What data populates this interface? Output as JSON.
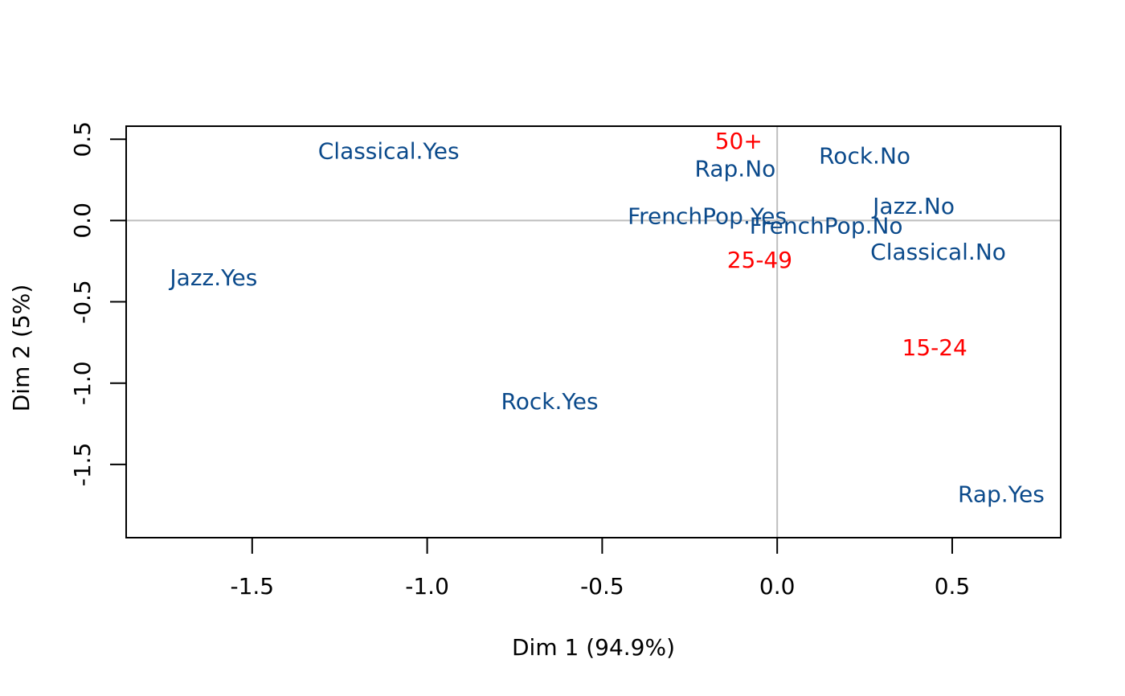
{
  "chart_data": {
    "type": "scatter",
    "title": "",
    "xlabel": "Dim 1 (94.9%)",
    "ylabel": "Dim 2 (5%)",
    "xlim": [
      -1.86,
      0.81
    ],
    "ylim": [
      -1.95,
      0.58
    ],
    "x_ticks": [
      -1.5,
      -1.0,
      -0.5,
      0.0,
      0.5
    ],
    "x_tick_labels": [
      "-1.5",
      "-1.0",
      "-0.5",
      "0.0",
      "0.5"
    ],
    "y_ticks": [
      -1.5,
      -1.0,
      -0.5,
      0.0,
      0.5
    ],
    "y_tick_labels": [
      "-1.5",
      "-1.0",
      "-0.5",
      "0.0",
      "0.5"
    ],
    "reference_lines": {
      "x": 0,
      "y": 0,
      "color": "#bebebe"
    },
    "grid": false,
    "legend": "none",
    "series": [
      {
        "color": "#0b4a8b",
        "points": [
          {
            "label": "Classical.Yes",
            "x": -1.11,
            "y": 0.43
          },
          {
            "label": "Rap.No",
            "x": -0.12,
            "y": 0.32
          },
          {
            "label": "Rock.No",
            "x": 0.25,
            "y": 0.4
          },
          {
            "label": "Jazz.No",
            "x": 0.39,
            "y": 0.09
          },
          {
            "label": "FrenchPop.Yes",
            "x": -0.2,
            "y": 0.03
          },
          {
            "label": "FrenchPop.No",
            "x": 0.14,
            "y": -0.03
          },
          {
            "label": "Classical.No",
            "x": 0.46,
            "y": -0.19
          },
          {
            "label": "Jazz.Yes",
            "x": -1.61,
            "y": -0.35
          },
          {
            "label": "Rock.Yes",
            "x": -0.65,
            "y": -1.11
          },
          {
            "label": "Rap.Yes",
            "x": 0.64,
            "y": -1.68
          }
        ]
      },
      {
        "color": "#ff0000",
        "points": [
          {
            "label": "50+",
            "x": -0.11,
            "y": 0.49
          },
          {
            "label": "25-49",
            "x": -0.05,
            "y": -0.24
          },
          {
            "label": "15-24",
            "x": 0.45,
            "y": -0.78
          }
        ]
      }
    ]
  }
}
